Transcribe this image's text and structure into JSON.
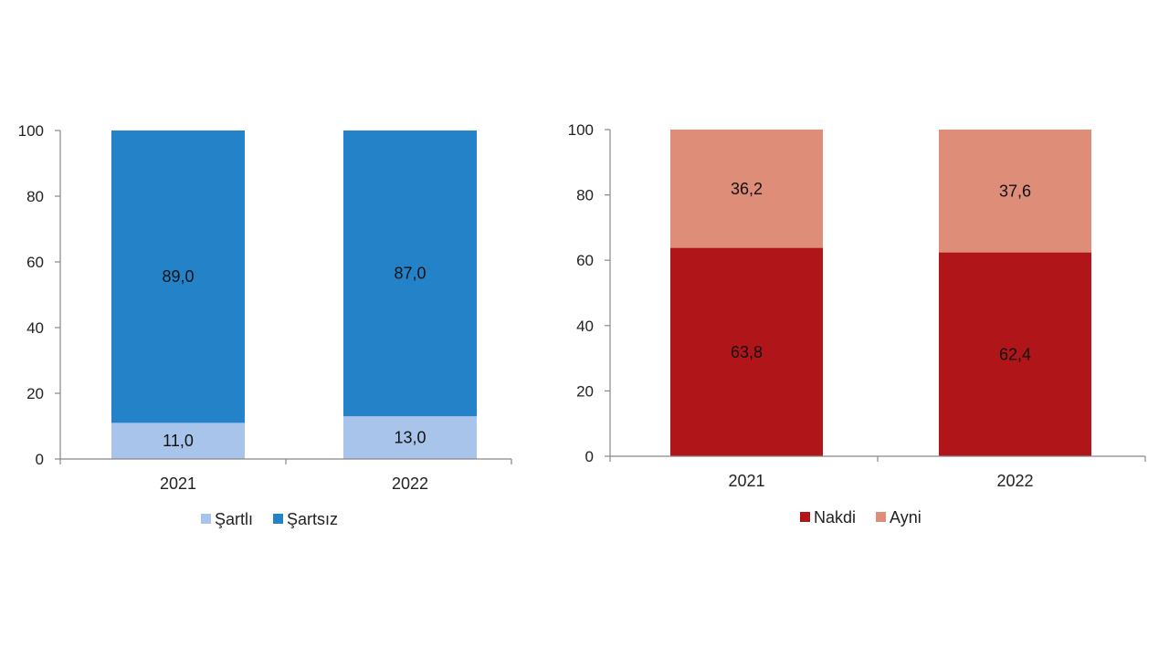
{
  "chart_data": [
    {
      "type": "bar",
      "stacked": true,
      "title": "",
      "xlabel": "",
      "ylabel": "",
      "ylim": [
        0,
        100
      ],
      "yticks": [
        0,
        20,
        40,
        60,
        80,
        100
      ],
      "grid": false,
      "legend_position": "bottom",
      "categories": [
        "2021",
        "2022"
      ],
      "series": [
        {
          "name": "Şartlı",
          "values": [
            11.0,
            13.0
          ],
          "labels": [
            "11,0",
            "13,0"
          ],
          "color": "#a9c4ea"
        },
        {
          "name": "Şartsız",
          "values": [
            89.0,
            87.0
          ],
          "labels": [
            "89,0",
            "87,0"
          ],
          "color": "#2483c8"
        }
      ]
    },
    {
      "type": "bar",
      "stacked": true,
      "title": "",
      "xlabel": "",
      "ylabel": "",
      "ylim": [
        0,
        100
      ],
      "yticks": [
        0,
        20,
        40,
        60,
        80,
        100
      ],
      "grid": false,
      "legend_position": "bottom",
      "categories": [
        "2021",
        "2022"
      ],
      "series": [
        {
          "name": "Nakdi",
          "values": [
            63.8,
            62.4
          ],
          "labels": [
            "63,8",
            "62,4"
          ],
          "color": "#b01519"
        },
        {
          "name": "Ayni",
          "values": [
            36.2,
            37.6
          ],
          "labels": [
            "36,2",
            "37,6"
          ],
          "color": "#dd8d78"
        }
      ]
    }
  ]
}
